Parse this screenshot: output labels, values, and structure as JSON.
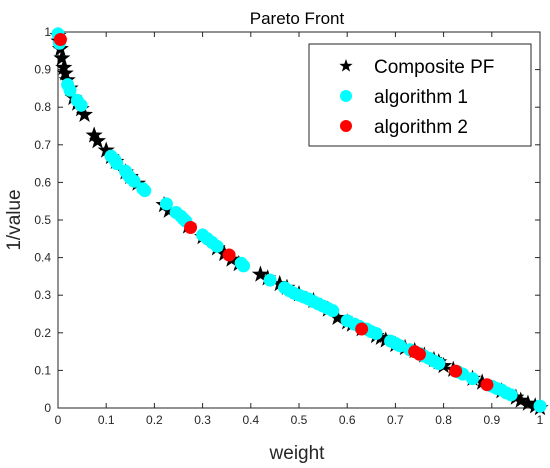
{
  "chart_data": {
    "type": "scatter",
    "title": "Pareto Front",
    "xlabel": "weight",
    "ylabel": "1/value",
    "xlim": [
      0,
      1
    ],
    "ylim": [
      0,
      1
    ],
    "xticks": [
      "0",
      "0.1",
      "0.2",
      "0.3",
      "0.4",
      "0.5",
      "0.6",
      "0.7",
      "0.8",
      "0.9",
      "1"
    ],
    "yticks": [
      "0",
      "0.1",
      "0.2",
      "0.3",
      "0.4",
      "0.5",
      "0.6",
      "0.7",
      "0.8",
      "0.9",
      "1"
    ],
    "grid": false,
    "legend_position": "top-right",
    "series": [
      {
        "name": "Composite PF",
        "marker": "star",
        "color": "#000000",
        "points": [
          [
            0.0,
            0.99
          ],
          [
            0.002,
            0.975
          ],
          [
            0.005,
            0.955
          ],
          [
            0.008,
            0.93
          ],
          [
            0.012,
            0.905
          ],
          [
            0.015,
            0.89
          ],
          [
            0.019,
            0.872
          ],
          [
            0.025,
            0.85
          ],
          [
            0.032,
            0.825
          ],
          [
            0.04,
            0.81
          ],
          [
            0.048,
            0.795
          ],
          [
            0.055,
            0.78
          ],
          [
            0.075,
            0.725
          ],
          [
            0.082,
            0.71
          ],
          [
            0.1,
            0.685
          ],
          [
            0.11,
            0.668
          ],
          [
            0.12,
            0.655
          ],
          [
            0.14,
            0.627
          ],
          [
            0.15,
            0.615
          ],
          [
            0.165,
            0.597
          ],
          [
            0.22,
            0.54
          ],
          [
            0.23,
            0.525
          ],
          [
            0.27,
            0.483
          ],
          [
            0.3,
            0.455
          ],
          [
            0.33,
            0.425
          ],
          [
            0.345,
            0.41
          ],
          [
            0.36,
            0.395
          ],
          [
            0.375,
            0.383
          ],
          [
            0.42,
            0.355
          ],
          [
            0.435,
            0.345
          ],
          [
            0.46,
            0.33
          ],
          [
            0.475,
            0.32
          ],
          [
            0.5,
            0.303
          ],
          [
            0.53,
            0.285
          ],
          [
            0.56,
            0.262
          ],
          [
            0.58,
            0.24
          ],
          [
            0.6,
            0.228
          ],
          [
            0.61,
            0.222
          ],
          [
            0.63,
            0.21
          ],
          [
            0.66,
            0.192
          ],
          [
            0.67,
            0.187
          ],
          [
            0.68,
            0.18
          ],
          [
            0.7,
            0.168
          ],
          [
            0.72,
            0.16
          ],
          [
            0.74,
            0.152
          ],
          [
            0.76,
            0.14
          ],
          [
            0.78,
            0.128
          ],
          [
            0.79,
            0.122
          ],
          [
            0.8,
            0.112
          ],
          [
            0.82,
            0.102
          ],
          [
            0.86,
            0.078
          ],
          [
            0.88,
            0.068
          ],
          [
            0.92,
            0.045
          ],
          [
            0.95,
            0.028
          ],
          [
            0.96,
            0.02
          ],
          [
            0.975,
            0.012
          ],
          [
            0.99,
            0.005
          ],
          [
            1.0,
            0.0
          ]
        ]
      },
      {
        "name": "algorithm 1",
        "marker": "circle",
        "color": "#00ffff",
        "points": [
          [
            0.0,
            0.995
          ],
          [
            0.003,
            0.97
          ],
          [
            0.02,
            0.86
          ],
          [
            0.025,
            0.845
          ],
          [
            0.04,
            0.818
          ],
          [
            0.048,
            0.805
          ],
          [
            0.11,
            0.67
          ],
          [
            0.118,
            0.66
          ],
          [
            0.122,
            0.65
          ],
          [
            0.14,
            0.63
          ],
          [
            0.145,
            0.62
          ],
          [
            0.15,
            0.612
          ],
          [
            0.158,
            0.603
          ],
          [
            0.176,
            0.583
          ],
          [
            0.18,
            0.578
          ],
          [
            0.225,
            0.543
          ],
          [
            0.245,
            0.52
          ],
          [
            0.255,
            0.51
          ],
          [
            0.26,
            0.503
          ],
          [
            0.265,
            0.497
          ],
          [
            0.3,
            0.46
          ],
          [
            0.31,
            0.45
          ],
          [
            0.32,
            0.44
          ],
          [
            0.33,
            0.43
          ],
          [
            0.38,
            0.385
          ],
          [
            0.385,
            0.378
          ],
          [
            0.44,
            0.34
          ],
          [
            0.47,
            0.32
          ],
          [
            0.48,
            0.312
          ],
          [
            0.49,
            0.305
          ],
          [
            0.5,
            0.3
          ],
          [
            0.51,
            0.295
          ],
          [
            0.52,
            0.29
          ],
          [
            0.53,
            0.283
          ],
          [
            0.54,
            0.277
          ],
          [
            0.55,
            0.271
          ],
          [
            0.56,
            0.265
          ],
          [
            0.57,
            0.259
          ],
          [
            0.6,
            0.232
          ],
          [
            0.615,
            0.223
          ],
          [
            0.625,
            0.217
          ],
          [
            0.64,
            0.21
          ],
          [
            0.65,
            0.203
          ],
          [
            0.66,
            0.198
          ],
          [
            0.69,
            0.178
          ],
          [
            0.7,
            0.172
          ],
          [
            0.705,
            0.168
          ],
          [
            0.71,
            0.165
          ],
          [
            0.73,
            0.155
          ],
          [
            0.75,
            0.145
          ],
          [
            0.76,
            0.138
          ],
          [
            0.77,
            0.132
          ],
          [
            0.78,
            0.125
          ],
          [
            0.79,
            0.118
          ],
          [
            0.83,
            0.096
          ],
          [
            0.84,
            0.09
          ],
          [
            0.86,
            0.078
          ],
          [
            0.9,
            0.058
          ],
          [
            0.91,
            0.052
          ],
          [
            0.92,
            0.048
          ],
          [
            0.93,
            0.04
          ],
          [
            0.94,
            0.035
          ],
          [
            1.0,
            0.005
          ]
        ]
      },
      {
        "name": "algorithm 2",
        "marker": "circle",
        "color": "#ff0000",
        "points": [
          [
            0.005,
            0.98
          ],
          [
            0.275,
            0.48
          ],
          [
            0.355,
            0.407
          ],
          [
            0.63,
            0.21
          ],
          [
            0.74,
            0.15
          ],
          [
            0.75,
            0.143
          ],
          [
            0.825,
            0.098
          ],
          [
            0.89,
            0.062
          ]
        ]
      }
    ]
  }
}
